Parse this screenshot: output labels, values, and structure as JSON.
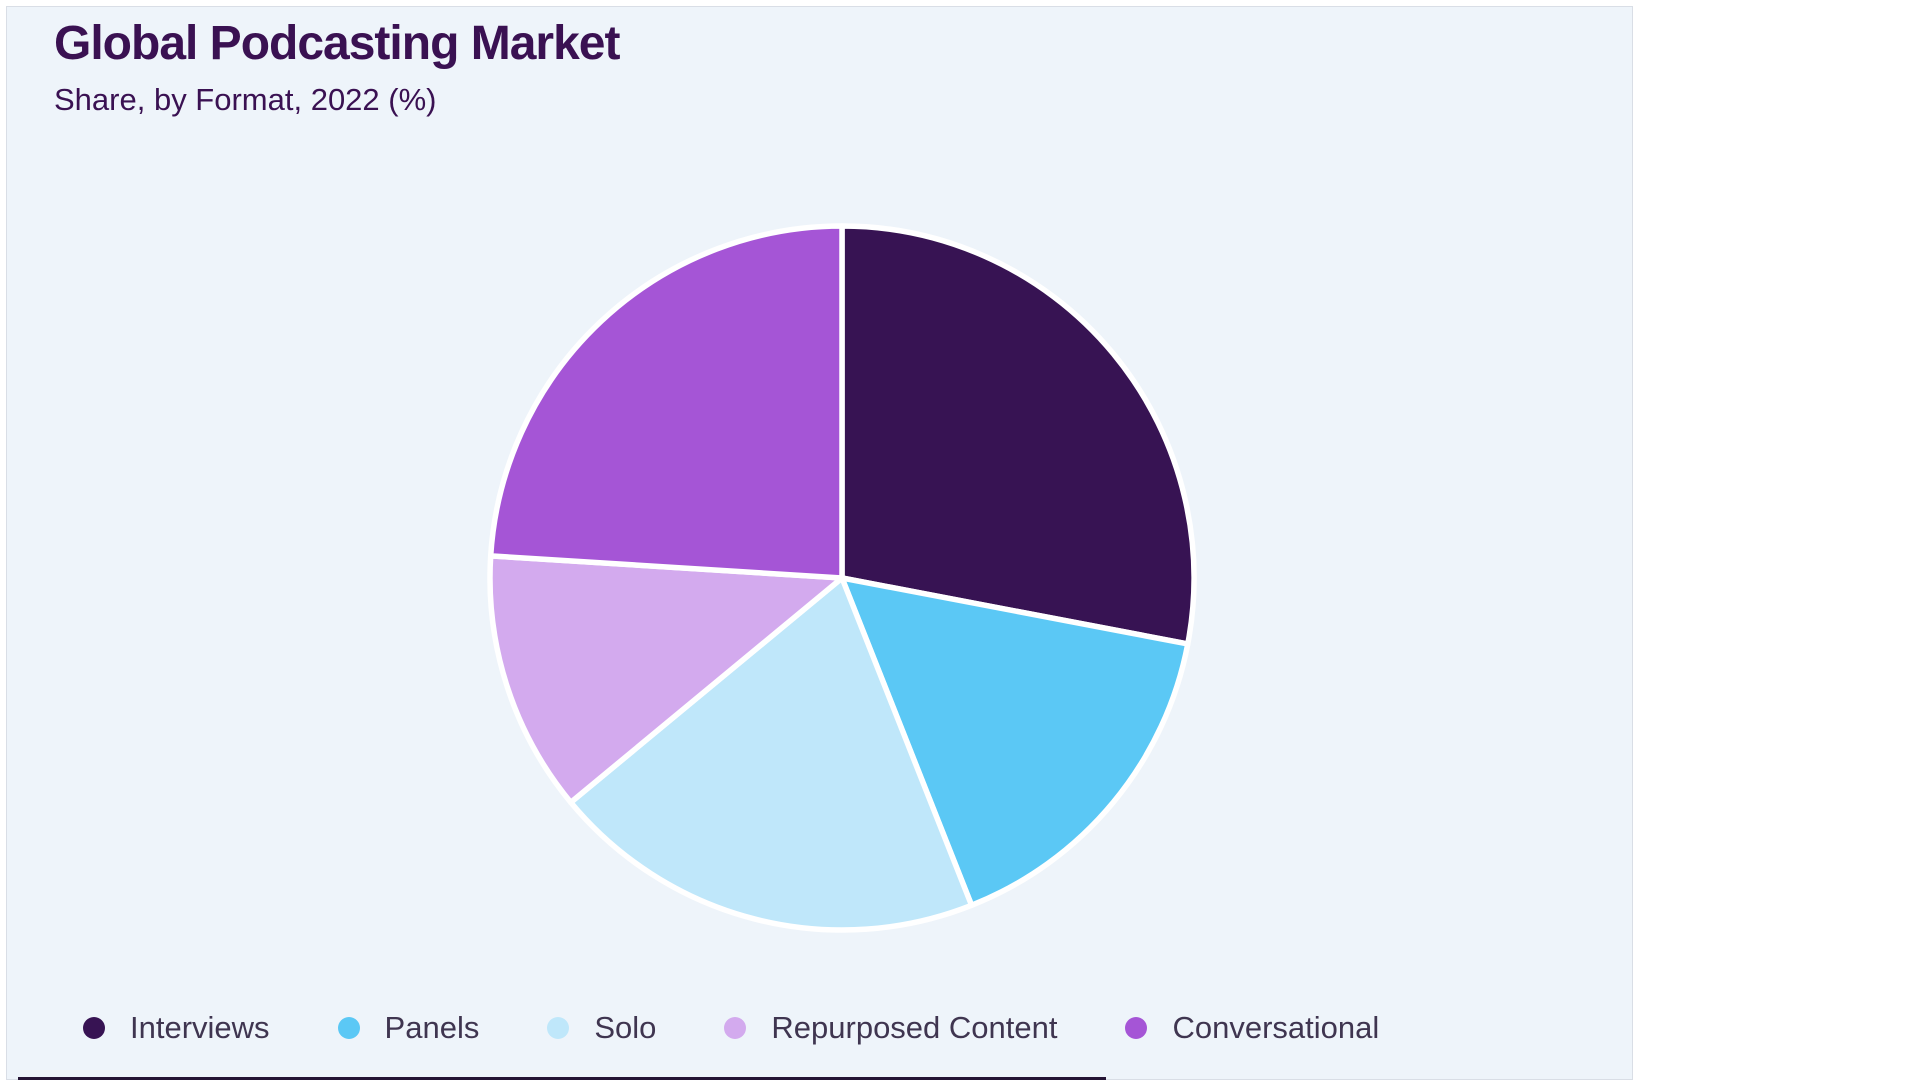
{
  "card": {
    "background": "#eef4fa",
    "border_color": "#d9dee6"
  },
  "header": {
    "title": "Global Podcasting Market",
    "subtitle": "Share, by Format, 2022 (%)",
    "title_color": "#3a1152"
  },
  "chart_data": {
    "type": "pie",
    "title": "Global Podcasting Market",
    "subtitle": "Share, by Format, 2022 (%)",
    "unit": "%",
    "categories": [
      "Interviews",
      "Panels",
      "Solo",
      "Repurposed Content",
      "Conversational"
    ],
    "values": [
      28,
      16,
      20,
      12,
      24
    ],
    "colors": [
      "#371353",
      "#5bc8f5",
      "#bfe7fa",
      "#d3aaee",
      "#a555d6"
    ],
    "start_angle_deg": 0,
    "direction": "clockwise",
    "separator_color": "#ffffff",
    "legend_position": "bottom",
    "legend_text_color": "#3f3550"
  },
  "decor": {
    "bottom_bar_color": "#241434"
  }
}
